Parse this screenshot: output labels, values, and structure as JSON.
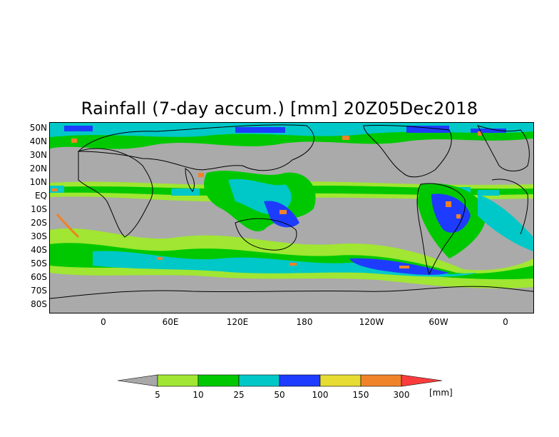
{
  "title": "Rainfall (7-day accum.) [mm] 20Z05Dec2018",
  "map": {
    "region": "global",
    "projection": "lat-lon",
    "lon_range": [
      -45,
      20
    ],
    "lon_range_note": "45W to 20E wrapped across 360 degrees",
    "lat_range": [
      -86,
      52
    ],
    "background": "#aaaaaa",
    "lat_labels": [
      "50N",
      "40N",
      "30N",
      "20N",
      "10N",
      "EQ",
      "10S",
      "20S",
      "30S",
      "40S",
      "50S",
      "60S",
      "70S",
      "80S"
    ],
    "lon_labels": [
      "0",
      "60E",
      "120E",
      "180",
      "120W",
      "60W",
      "0"
    ]
  },
  "legend": {
    "units": "[mm]",
    "labels": [
      "5",
      "10",
      "25",
      "50",
      "100",
      "150",
      "300"
    ],
    "colors": [
      "#a8a8a8",
      "#a0e632",
      "#00c800",
      "#00c8c8",
      "#1e3cff",
      "#e6dc32",
      "#f08228",
      "#fa3c3c"
    ]
  }
}
